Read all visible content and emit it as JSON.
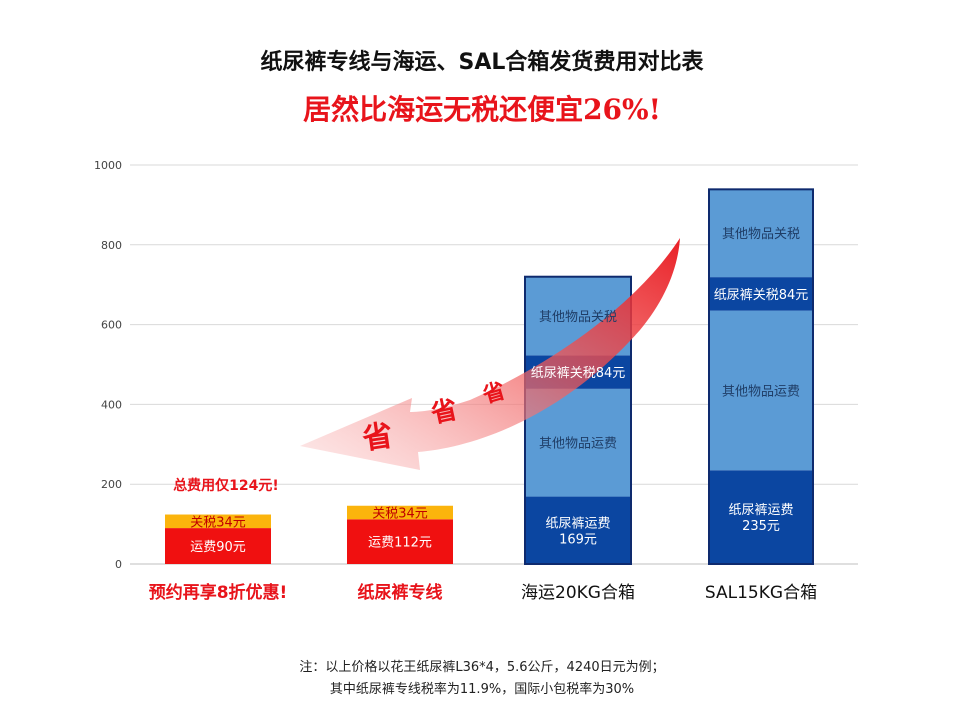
{
  "header": {
    "title": "纸尿裤专线与海运、SAL合箱发货费用对比表",
    "subtitle": "居然比海运无税还便宜26%!"
  },
  "chart_data": {
    "type": "bar",
    "stacked": true,
    "ylim": [
      0,
      1000
    ],
    "yticks": [
      0,
      200,
      400,
      600,
      800,
      1000
    ],
    "grid": true,
    "categories": [
      "预约再享8折优惠!",
      "纸尿裤专线",
      "海运20KG合箱",
      "SAL15KG合箱"
    ],
    "category_colors": [
      "#e8141b",
      "#e8141b",
      "#111111",
      "#111111"
    ],
    "bars": [
      {
        "segments": [
          {
            "value": 90,
            "label": "运费90元",
            "color": "#f01010",
            "text_color": "#ffffff"
          },
          {
            "value": 34,
            "label": "关税34元",
            "color": "#fbb40c",
            "text_color": "#c00000"
          }
        ],
        "outline": false
      },
      {
        "segments": [
          {
            "value": 112,
            "label": "运费112元",
            "color": "#f01010",
            "text_color": "#ffffff"
          },
          {
            "value": 34,
            "label": "关税34元",
            "color": "#fbb40c",
            "text_color": "#c00000"
          }
        ],
        "outline": false
      },
      {
        "segments": [
          {
            "value": 169,
            "label": "纸尿裤运费169元",
            "label_lines": [
              "纸尿裤运费",
              "169元"
            ],
            "color": "#0b46a1",
            "text_color": "#ffffff"
          },
          {
            "value": 270,
            "label": "其他物品运费",
            "color": "#5b9bd5",
            "text_color": "#1f3d66"
          },
          {
            "value": 84,
            "label": "纸尿裤关税84元",
            "color": "#0b46a1",
            "text_color": "#ffffff"
          },
          {
            "value": 197,
            "label": "其他物品关税",
            "color": "#5b9bd5",
            "text_color": "#1f3d66"
          }
        ],
        "outline": true
      },
      {
        "segments": [
          {
            "value": 235,
            "label": "纸尿裤运费235元",
            "label_lines": [
              "纸尿裤运费",
              "235元"
            ],
            "color": "#0b46a1",
            "text_color": "#ffffff"
          },
          {
            "value": 400,
            "label": "其他物品运费",
            "color": "#5b9bd5",
            "text_color": "#1f3d66"
          },
          {
            "value": 84,
            "label": "纸尿裤关税84元",
            "color": "#0b46a1",
            "text_color": "#ffffff"
          },
          {
            "value": 220,
            "label": "其他物品关税",
            "color": "#5b9bd5",
            "text_color": "#1f3d66"
          }
        ],
        "outline": true
      }
    ],
    "annotations": [
      {
        "text": "总费用仅124元!",
        "color": "#e8141b"
      },
      {
        "text": "省",
        "color": "#e8141b"
      },
      {
        "text": "省",
        "color": "#e8141b"
      },
      {
        "text": "省",
        "color": "#e8141b"
      }
    ]
  },
  "footnote": {
    "line1": "注：以上价格以花王纸尿裤L36*4，5.6公斤，4240日元为例；",
    "line2": "其中纸尿裤专线税率为11.9%，国际小包税率为30%"
  }
}
